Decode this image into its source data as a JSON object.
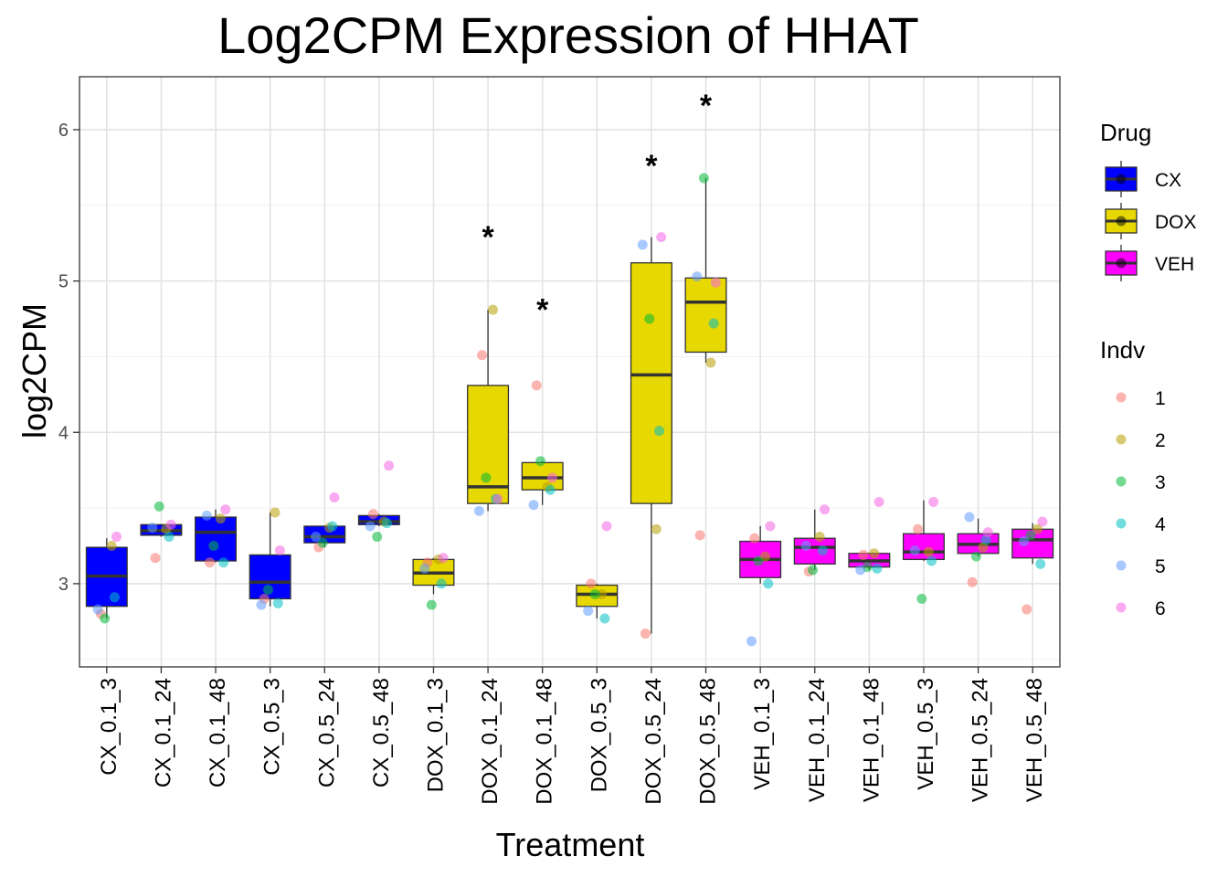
{
  "chart_data": {
    "type": "box",
    "title": "Log2CPM Expression of HHAT",
    "xlabel": "Treatment",
    "ylabel": "log2CPM",
    "ylim": [
      2.45,
      6.35
    ],
    "y_ticks": [
      3,
      4,
      5,
      6
    ],
    "y_tick_labels": [
      "3",
      "4",
      "5",
      "6"
    ],
    "grid": true,
    "categories": [
      "CX_0.1_3",
      "CX_0.1_24",
      "CX_0.1_48",
      "CX_0.5_3",
      "CX_0.5_24",
      "CX_0.5_48",
      "DOX_0.1_3",
      "DOX_0.1_24",
      "DOX_0.1_48",
      "DOX_0.5_3",
      "DOX_0.5_24",
      "DOX_0.5_48",
      "VEH_0.1_3",
      "VEH_0.1_24",
      "VEH_0.1_48",
      "VEH_0.5_3",
      "VEH_0.5_24",
      "VEH_0.5_48"
    ],
    "drug": [
      "CX",
      "CX",
      "CX",
      "CX",
      "CX",
      "CX",
      "DOX",
      "DOX",
      "DOX",
      "DOX",
      "DOX",
      "DOX",
      "VEH",
      "VEH",
      "VEH",
      "VEH",
      "VEH",
      "VEH"
    ],
    "boxes": [
      {
        "lower_whisker": 2.77,
        "q1": 2.85,
        "median": 3.05,
        "q3": 3.24,
        "upper_whisker": 3.3
      },
      {
        "lower_whisker": 3.31,
        "q1": 3.32,
        "median": 3.35,
        "q3": 3.39,
        "upper_whisker": 3.39
      },
      {
        "lower_whisker": 3.14,
        "q1": 3.15,
        "median": 3.34,
        "q3": 3.44,
        "upper_whisker": 3.49
      },
      {
        "lower_whisker": 2.85,
        "q1": 2.9,
        "median": 3.01,
        "q3": 3.19,
        "upper_whisker": 3.47
      },
      {
        "lower_whisker": 3.24,
        "q1": 3.27,
        "median": 3.31,
        "q3": 3.38,
        "upper_whisker": 3.38
      },
      {
        "lower_whisker": 3.38,
        "q1": 3.39,
        "median": 3.41,
        "q3": 3.45,
        "upper_whisker": 3.46
      },
      {
        "lower_whisker": 2.93,
        "q1": 2.99,
        "median": 3.07,
        "q3": 3.16,
        "upper_whisker": 3.17
      },
      {
        "lower_whisker": 3.48,
        "q1": 3.53,
        "median": 3.64,
        "q3": 4.31,
        "upper_whisker": 4.81
      },
      {
        "lower_whisker": 3.52,
        "q1": 3.62,
        "median": 3.7,
        "q3": 3.8,
        "upper_whisker": 3.81
      },
      {
        "lower_whisker": 2.77,
        "q1": 2.85,
        "median": 2.93,
        "q3": 2.99,
        "upper_whisker": 3.0
      },
      {
        "lower_whisker": 2.67,
        "q1": 3.53,
        "median": 4.38,
        "q3": 5.12,
        "upper_whisker": 5.29
      },
      {
        "lower_whisker": 4.46,
        "q1": 4.53,
        "median": 4.86,
        "q3": 5.02,
        "upper_whisker": 5.68
      },
      {
        "lower_whisker": 3.0,
        "q1": 3.04,
        "median": 3.16,
        "q3": 3.28,
        "upper_whisker": 3.38
      },
      {
        "lower_whisker": 3.09,
        "q1": 3.13,
        "median": 3.24,
        "q3": 3.3,
        "upper_whisker": 3.49
      },
      {
        "lower_whisker": 3.09,
        "q1": 3.11,
        "median": 3.15,
        "q3": 3.2,
        "upper_whisker": 3.2
      },
      {
        "lower_whisker": 3.15,
        "q1": 3.16,
        "median": 3.21,
        "q3": 3.33,
        "upper_whisker": 3.55
      },
      {
        "lower_whisker": 3.18,
        "q1": 3.2,
        "median": 3.26,
        "q3": 3.33,
        "upper_whisker": 3.43
      },
      {
        "lower_whisker": 3.13,
        "q1": 3.17,
        "median": 3.29,
        "q3": 3.36,
        "upper_whisker": 3.4
      }
    ],
    "points": [
      [
        2.8,
        3.25,
        2.77,
        2.91,
        2.83,
        3.31
      ],
      [
        3.17,
        3.36,
        3.51,
        3.31,
        3.37,
        3.39
      ],
      [
        3.14,
        3.43,
        3.25,
        3.14,
        3.45,
        3.49
      ],
      [
        2.9,
        3.47,
        2.96,
        2.87,
        2.86,
        3.22
      ],
      [
        3.24,
        3.37,
        3.27,
        3.38,
        3.31,
        3.57
      ],
      [
        3.46,
        3.41,
        3.31,
        3.4,
        3.38,
        3.78
      ],
      [
        3.14,
        3.16,
        2.86,
        3.0,
        3.1,
        3.17
      ],
      [
        4.51,
        4.81,
        3.7,
        3.56,
        3.48,
        3.56
      ],
      [
        4.31,
        3.64,
        3.81,
        3.62,
        3.52,
        3.7
      ],
      [
        3.0,
        2.93,
        2.93,
        2.77,
        2.82,
        3.38
      ],
      [
        2.67,
        3.36,
        4.75,
        4.01,
        5.24,
        5.29
      ],
      [
        3.32,
        4.46,
        5.68,
        4.72,
        5.03,
        4.99
      ],
      [
        3.3,
        3.18,
        3.15,
        3.0,
        2.62,
        3.38
      ],
      [
        3.08,
        3.31,
        3.09,
        3.22,
        3.25,
        3.49
      ],
      [
        3.19,
        3.2,
        3.11,
        3.1,
        3.09,
        3.54
      ],
      [
        3.36,
        3.21,
        2.9,
        3.15,
        3.22,
        3.54
      ],
      [
        3.01,
        3.24,
        3.18,
        3.29,
        3.44,
        3.34
      ],
      [
        2.83,
        3.36,
        3.32,
        3.13,
        3.28,
        3.41
      ]
    ],
    "significance": [
      {
        "category": "DOX_0.1_24",
        "y": 5.33,
        "label": "*"
      },
      {
        "category": "DOX_0.1_48",
        "y": 4.85,
        "label": "*"
      },
      {
        "category": "DOX_0.5_24",
        "y": 5.8,
        "label": "*"
      },
      {
        "category": "DOX_0.5_48",
        "y": 6.2,
        "label": "*"
      }
    ],
    "legends": [
      {
        "title": "Drug",
        "placement": "right",
        "items": [
          {
            "label": "CX",
            "color": "#0000ff"
          },
          {
            "label": "DOX",
            "color": "#e6d800"
          },
          {
            "label": "VEH",
            "color": "#ff00ff"
          }
        ]
      },
      {
        "title": "Indv",
        "placement": "right",
        "items": [
          {
            "label": "1",
            "color": "#f8766d"
          },
          {
            "label": "2",
            "color": "#b79f00"
          },
          {
            "label": "3",
            "color": "#00ba38"
          },
          {
            "label": "4",
            "color": "#00bfc4"
          },
          {
            "label": "5",
            "color": "#619cff"
          },
          {
            "label": "6",
            "color": "#f564e3"
          }
        ]
      }
    ],
    "colors": {
      "CX": "#0000ff",
      "DOX": "#e6d800",
      "VEH": "#ff00ff",
      "indv_1": "#f8766d",
      "indv_2": "#b79f00",
      "indv_3": "#00ba38",
      "indv_4": "#00bfc4",
      "indv_5": "#619cff",
      "indv_6": "#f564e3"
    }
  }
}
